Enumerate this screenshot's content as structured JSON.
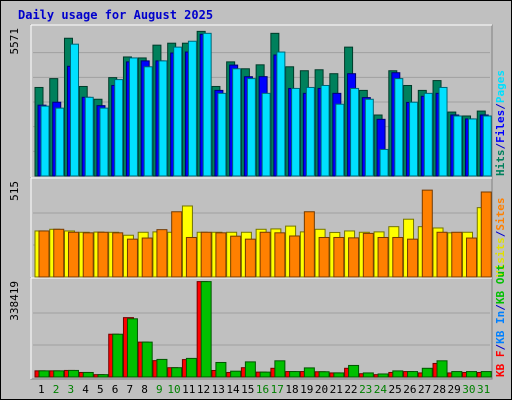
{
  "chart_data": {
    "type": "bar",
    "title": "Daily usage for August 2025",
    "categories": [
      "1",
      "2",
      "3",
      "4",
      "5",
      "6",
      "7",
      "8",
      "9",
      "10",
      "11",
      "12",
      "13",
      "14",
      "15",
      "16",
      "17",
      "18",
      "19",
      "20",
      "21",
      "22",
      "23",
      "24",
      "25",
      "26",
      "27",
      "28",
      "29",
      "30",
      "31"
    ],
    "weekend_days": [
      "2",
      "3",
      "9",
      "10",
      "16",
      "17",
      "23",
      "24",
      "30",
      "31"
    ],
    "panels": [
      {
        "id": "hits",
        "ymax_label": "5571",
        "ylim": [
          0,
          5571
        ],
        "legend": [
          {
            "text": "Hits",
            "color": "#00805c"
          },
          {
            "text": "/",
            "color": "#0000cc"
          },
          {
            "text": "Files",
            "color": "#0000ff"
          },
          {
            "text": "/",
            "color": "#0000cc"
          },
          {
            "text": "Pages",
            "color": "#00e0ff"
          }
        ],
        "series": [
          {
            "name": "Hits",
            "color": "#00805c",
            "values": [
              3333,
              3666,
              5185,
              3370,
              2889,
              3703,
              4481,
              4444,
              4925,
              4999,
              4999,
              5444,
              3370,
              4296,
              4036,
              4185,
              5370,
              4111,
              3963,
              3999,
              3851,
              4851,
              3222,
              2296,
              3962,
              3407,
              3222,
              3592,
              2407,
              2259,
              2444
            ]
          },
          {
            "name": "Files",
            "color": "#0000ff",
            "values": [
              2666,
              2777,
              4129,
              2962,
              2648,
              3407,
              4296,
              4333,
              4333,
              4629,
              4666,
              5333,
              3222,
              4175,
              3737,
              3740,
              4555,
              3295,
              3111,
              3296,
              3111,
              3851,
              2951,
              2133,
              3888,
              2770,
              3000,
              3111,
              2296,
              2148,
              2296
            ]
          },
          {
            "name": "Pages",
            "color": "#00e0ff",
            "values": [
              2630,
              2555,
              4962,
              2962,
              2555,
              3629,
              4444,
              4111,
              4333,
              4851,
              5073,
              5370,
              3111,
              4036,
              3666,
              3111,
              4666,
              3296,
              3333,
              3407,
              2703,
              3296,
              2888,
              1000,
              3666,
              2777,
              3111,
              3333,
              2259,
              2148,
              2259
            ]
          }
        ]
      },
      {
        "id": "sites",
        "ymax_label": "515",
        "ylim": [
          0,
          515
        ],
        "legend": [
          {
            "text": "Visits",
            "color": "#e0e000"
          },
          {
            "text": "/",
            "color": "#0000cc"
          },
          {
            "text": "Sites",
            "color": "#ff8000"
          }
        ],
        "series": [
          {
            "name": "Visits",
            "color": "#ffff00",
            "values": [
              247,
              256,
              247,
              240,
              241,
              240,
              224,
              240,
              242,
              240,
              381,
              240,
              240,
              240,
              240,
              256,
              258,
              273,
              242,
              256,
              239,
              247,
              240,
              242,
              270,
              310,
              270,
              263,
              237,
              240,
              372
            ]
          },
          {
            "name": "Sites",
            "color": "#ff8000",
            "values": [
              247,
              256,
              240,
              237,
              240,
              237,
              203,
              209,
              254,
              350,
              212,
              240,
              237,
              219,
              203,
              240,
              237,
              220,
              350,
              212,
              212,
              210,
              234,
              212,
              212,
              203,
              466,
              240,
              240,
              209,
              456
            ]
          }
        ]
      },
      {
        "id": "kbytes",
        "ymax_label": "338419",
        "ylim": [
          0,
          338419
        ],
        "legend": [
          {
            "text": "KB F",
            "color": "#ff0000"
          },
          {
            "text": "/",
            "color": "#0000cc"
          },
          {
            "text": "KB In",
            "color": "#0080ff"
          },
          {
            "text": "/",
            "color": "#0000cc"
          },
          {
            "text": "KB Out",
            "color": "#00c000"
          }
        ],
        "series": [
          {
            "name": "KB F",
            "color": "#ff0000",
            "values": [
              21700,
              21700,
              23100,
              16000,
              8300,
              150800,
              209300,
              123000,
              57700,
              32800,
              61400,
              336300,
              23000,
              16000,
              32800,
              17200,
              30700,
              19200,
              19200,
              18500,
              14400,
              30700,
              11600,
              8300,
              16000,
              19200,
              14400,
              47800,
              14400,
              16000,
              16000
            ]
          },
          {
            "name": "KB Out",
            "color": "#00c000",
            "values": [
              21700,
              21700,
              23100,
              16000,
              8300,
              150800,
              205200,
              123000,
              62000,
              32800,
              65600,
              336300,
              51200,
              20500,
              53300,
              17200,
              57100,
              19200,
              32100,
              18500,
              14400,
              40700,
              14400,
              10700,
              21500,
              19200,
              30700,
              57100,
              19200,
              19200,
              19200
            ]
          }
        ]
      }
    ],
    "colors": {
      "background": "#c0c0c0",
      "plot_area": "#c0c0c0",
      "grid": "#a0a0a0",
      "weekday_tick": "#000000",
      "weekend_tick": "#008000"
    }
  }
}
